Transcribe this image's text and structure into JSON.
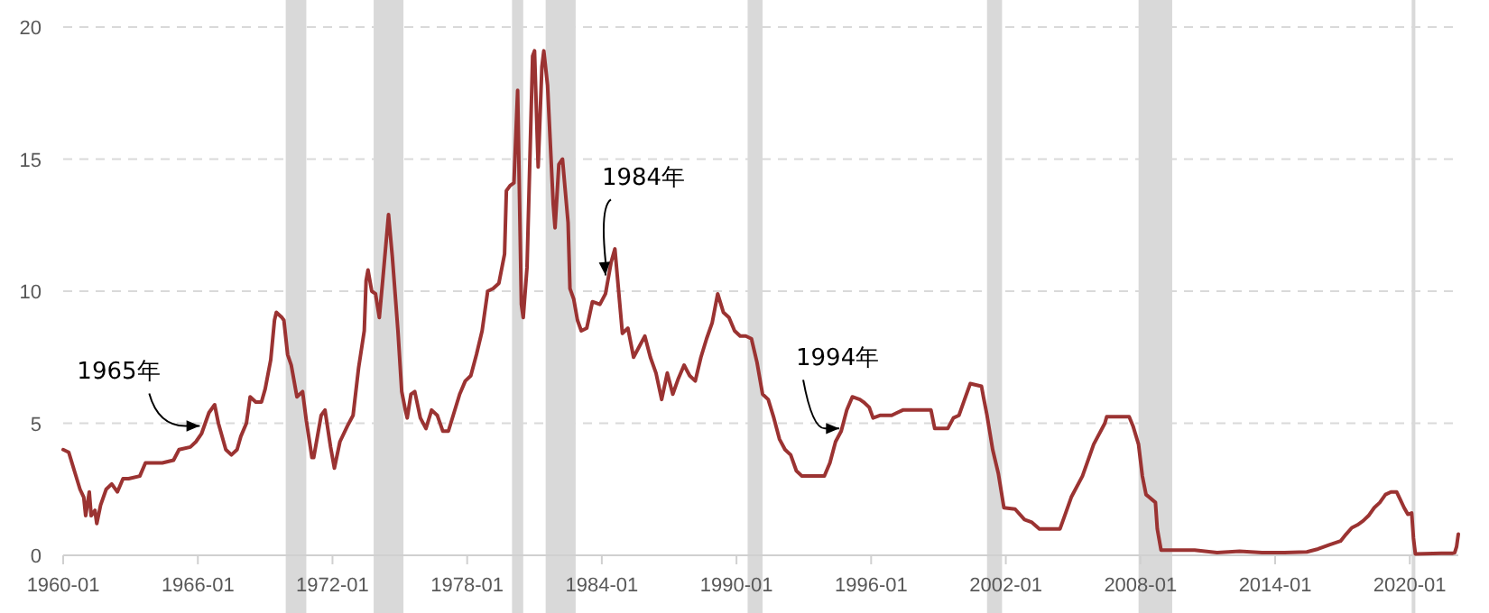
{
  "chart_data": {
    "type": "line",
    "x": [
      "1960-01",
      "1960-04",
      "1960-07",
      "1960-10",
      "1960-12",
      "1961-01",
      "1961-03",
      "1961-04",
      "1961-06",
      "1961-07",
      "1961-09",
      "1961-12",
      "1962-03",
      "1962-06",
      "1962-09",
      "1962-12",
      "1963-06",
      "1963-09",
      "1964-06",
      "1964-12",
      "1965-03",
      "1965-09",
      "1965-12",
      "1966-03",
      "1966-07",
      "1966-10",
      "1966-12",
      "1967-04",
      "1967-07",
      "1967-10",
      "1967-12",
      "1968-03",
      "1968-05",
      "1968-08",
      "1968-11",
      "1969-01",
      "1969-04",
      "1969-06",
      "1969-07",
      "1969-10",
      "1969-11",
      "1970-01",
      "1970-03",
      "1970-06",
      "1970-09",
      "1970-11",
      "1971-02",
      "1971-03",
      "1971-07",
      "1971-09",
      "1971-12",
      "1972-02",
      "1972-05",
      "1972-09",
      "1972-12",
      "1973-03",
      "1973-06",
      "1973-07",
      "1973-08",
      "1973-10",
      "1973-12",
      "1974-02",
      "1974-04",
      "1974-07",
      "1974-09",
      "1974-12",
      "1975-02",
      "1975-04",
      "1975-05",
      "1975-07",
      "1975-09",
      "1975-12",
      "1976-03",
      "1976-06",
      "1976-09",
      "1976-12",
      "1977-03",
      "1977-06",
      "1977-09",
      "1977-12",
      "1978-03",
      "1978-06",
      "1978-09",
      "1978-12",
      "1979-03",
      "1979-06",
      "1979-09",
      "1979-10",
      "1979-12",
      "1980-02",
      "1980-04",
      "1980-06",
      "1980-07",
      "1980-09",
      "1980-12",
      "1981-01",
      "1981-03",
      "1981-05",
      "1981-06",
      "1981-08",
      "1981-11",
      "1981-12",
      "1982-02",
      "1982-04",
      "1982-07",
      "1982-08",
      "1982-10",
      "1982-12",
      "1983-02",
      "1983-05",
      "1983-08",
      "1983-12",
      "1984-03",
      "1984-06",
      "1984-08",
      "1984-10",
      "1984-12",
      "1985-03",
      "1985-06",
      "1985-09",
      "1985-12",
      "1986-03",
      "1986-06",
      "1986-09",
      "1986-12",
      "1987-03",
      "1987-06",
      "1987-09",
      "1987-12",
      "1988-03",
      "1988-06",
      "1988-09",
      "1988-12",
      "1989-03",
      "1989-06",
      "1989-09",
      "1989-12",
      "1990-03",
      "1990-06",
      "1990-09",
      "1990-12",
      "1991-03",
      "1991-06",
      "1991-09",
      "1991-12",
      "1992-03",
      "1992-06",
      "1992-09",
      "1992-12",
      "1993-06",
      "1993-12",
      "1994-03",
      "1994-06",
      "1994-09",
      "1994-12",
      "1995-03",
      "1995-07",
      "1995-09",
      "1995-12",
      "1996-02",
      "1996-06",
      "1996-12",
      "1997-03",
      "1997-06",
      "1997-12",
      "1998-06",
      "1998-09",
      "1998-11",
      "1999-03",
      "1999-06",
      "1999-09",
      "1999-12",
      "2000-03",
      "2000-06",
      "2000-12",
      "2001-01",
      "2001-03",
      "2001-06",
      "2001-09",
      "2001-12",
      "2002-06",
      "2002-11",
      "2003-03",
      "2003-07",
      "2004-06",
      "2004-09",
      "2004-12",
      "2005-06",
      "2005-12",
      "2006-06",
      "2006-07",
      "2007-07",
      "2007-09",
      "2007-12",
      "2008-02",
      "2008-04",
      "2008-09",
      "2008-10",
      "2008-12",
      "2009-06",
      "2010-06",
      "2011-06",
      "2012-06",
      "2013-06",
      "2014-06",
      "2015-06",
      "2015-12",
      "2016-06",
      "2016-12",
      "2017-03",
      "2017-06",
      "2017-09",
      "2017-12",
      "2018-03",
      "2018-06",
      "2018-09",
      "2018-12",
      "2019-03",
      "2019-06",
      "2019-08",
      "2019-10",
      "2019-12",
      "2020-02",
      "2020-03",
      "2020-04",
      "2021-06",
      "2021-12",
      "2022-01",
      "2022-02",
      "2022-03"
    ],
    "series": [
      {
        "color": "#9b3332",
        "values": [
          4.0,
          3.9,
          3.2,
          2.5,
          2.2,
          1.5,
          2.4,
          1.5,
          1.7,
          1.2,
          1.9,
          2.5,
          2.7,
          2.4,
          2.9,
          2.9,
          3.0,
          3.5,
          3.5,
          3.6,
          4.0,
          4.1,
          4.3,
          4.6,
          5.4,
          5.7,
          5.0,
          4.0,
          3.8,
          4.0,
          4.5,
          5.0,
          6.0,
          5.8,
          5.8,
          6.3,
          7.4,
          8.9,
          9.2,
          9.0,
          8.9,
          7.6,
          7.2,
          6.0,
          6.2,
          5.1,
          3.7,
          3.7,
          5.3,
          5.5,
          4.1,
          3.3,
          4.3,
          4.9,
          5.3,
          7.1,
          8.5,
          10.4,
          10.8,
          10.0,
          9.9,
          9.0,
          10.5,
          12.9,
          11.3,
          8.5,
          6.2,
          5.5,
          5.2,
          6.1,
          6.2,
          5.2,
          4.8,
          5.5,
          5.3,
          4.7,
          4.7,
          5.4,
          6.1,
          6.6,
          6.8,
          7.6,
          8.5,
          10.0,
          10.1,
          10.3,
          11.4,
          13.8,
          14.0,
          14.1,
          17.6,
          9.5,
          9.0,
          10.9,
          18.9,
          19.1,
          14.7,
          18.5,
          19.1,
          17.8,
          13.3,
          12.4,
          14.8,
          15.0,
          12.6,
          10.1,
          9.7,
          8.9,
          8.5,
          8.6,
          9.6,
          9.5,
          9.9,
          11.1,
          11.6,
          10.0,
          8.4,
          8.6,
          7.5,
          7.9,
          8.3,
          7.5,
          6.9,
          5.9,
          6.9,
          6.1,
          6.7,
          7.2,
          6.8,
          6.6,
          7.5,
          8.2,
          8.8,
          9.9,
          9.2,
          9.0,
          8.5,
          8.3,
          8.3,
          8.2,
          7.3,
          6.1,
          5.9,
          5.2,
          4.4,
          4.0,
          3.8,
          3.2,
          3.0,
          3.0,
          3.0,
          3.5,
          4.3,
          4.7,
          5.5,
          6.0,
          5.9,
          5.8,
          5.6,
          5.2,
          5.3,
          5.3,
          5.4,
          5.5,
          5.5,
          5.5,
          5.5,
          4.8,
          4.8,
          4.8,
          5.2,
          5.3,
          5.9,
          6.5,
          6.4,
          6.0,
          5.3,
          4.0,
          3.1,
          1.8,
          1.75,
          1.35,
          1.25,
          1.0,
          1.0,
          1.6,
          2.2,
          3.0,
          4.2,
          5.0,
          5.25,
          5.25,
          4.9,
          4.2,
          3.0,
          2.3,
          2.0,
          1.0,
          0.2,
          0.2,
          0.2,
          0.1,
          0.15,
          0.1,
          0.1,
          0.13,
          0.24,
          0.4,
          0.54,
          0.8,
          1.04,
          1.15,
          1.3,
          1.5,
          1.8,
          2.0,
          2.3,
          2.4,
          2.4,
          2.1,
          1.8,
          1.55,
          1.6,
          0.65,
          0.05,
          0.08,
          0.08,
          0.1,
          0.33,
          0.8
        ]
      }
    ],
    "xlim": [
      "1960-01",
      "2022-03"
    ],
    "xticks": [
      "1960-01",
      "1966-01",
      "1972-01",
      "1978-01",
      "1984-01",
      "1990-01",
      "1996-01",
      "2002-01",
      "2008-01",
      "2014-01",
      "2020-01"
    ],
    "ylim": [
      0,
      20
    ],
    "yticks": [
      0,
      5,
      10,
      15,
      20
    ],
    "grid": "y",
    "line_style": "solid",
    "marker": "none",
    "bands": [
      {
        "axis": "x",
        "from": "1969-12",
        "to": "1970-11",
        "color": "#d9d9d9"
      },
      {
        "axis": "x",
        "from": "1973-11",
        "to": "1975-03",
        "color": "#d9d9d9"
      },
      {
        "axis": "x",
        "from": "1980-01",
        "to": "1980-07",
        "color": "#d9d9d9"
      },
      {
        "axis": "x",
        "from": "1981-07",
        "to": "1982-11",
        "color": "#d9d9d9"
      },
      {
        "axis": "x",
        "from": "1990-07",
        "to": "1991-03",
        "color": "#d9d9d9"
      },
      {
        "axis": "x",
        "from": "2001-03",
        "to": "2001-11",
        "color": "#d9d9d9"
      },
      {
        "axis": "x",
        "from": "2007-12",
        "to": "2009-06",
        "color": "#d9d9d9"
      },
      {
        "axis": "x",
        "from": "2020-02",
        "to": "2020-04",
        "color": "#d9d9d9"
      }
    ],
    "annotations": [
      {
        "text": "1965年",
        "x": "1966-02",
        "y": 4.9
      },
      {
        "text": "1984年",
        "x": "1984-03",
        "y": 10.6
      },
      {
        "text": "1994年",
        "x": "1994-08",
        "y": 4.8
      }
    ]
  }
}
